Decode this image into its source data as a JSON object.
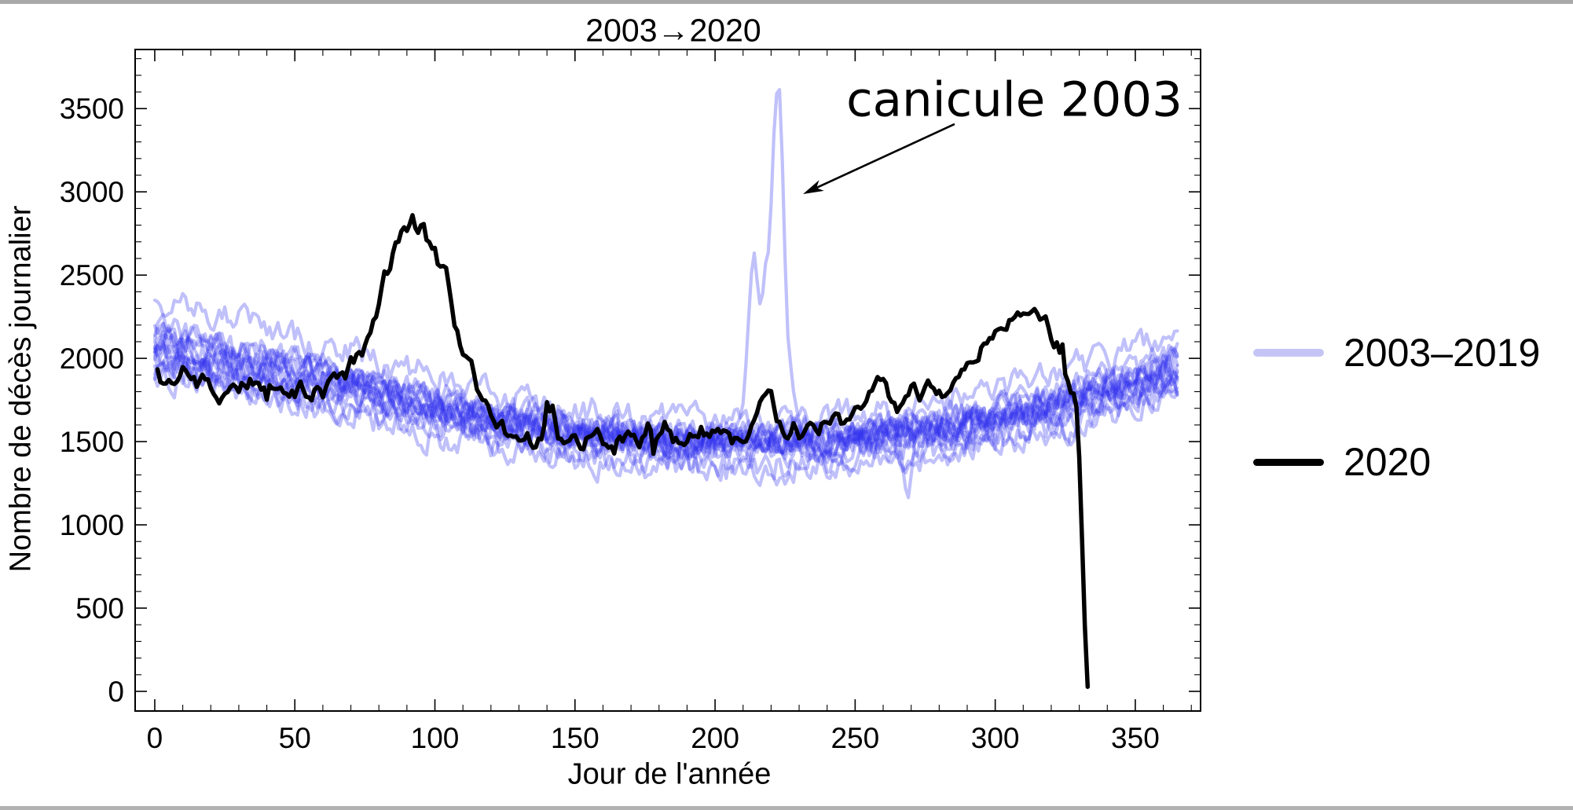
{
  "window": {
    "background": "#ffffff",
    "top_edge_color": "#a9a9a9",
    "bottom_edge_color": "#b2b2b2"
  },
  "chart_data": {
    "type": "line",
    "title": "2003→2020",
    "xlabel": "Jour de l'année",
    "ylabel": "Nombre de décès journalier",
    "xlim": [
      -7,
      373.3
    ],
    "ylim": [
      -118,
      3855
    ],
    "x_ticks": [
      0,
      50,
      100,
      150,
      200,
      250,
      300,
      350
    ],
    "x_minor_step": 10,
    "y_ticks": [
      0,
      500,
      1000,
      1500,
      2000,
      2500,
      3000,
      3500
    ],
    "y_minor_step": 100,
    "grid": false,
    "frame": true,
    "legend": {
      "position": "right-outside",
      "entries": [
        {
          "label": "2003–2019",
          "color": "#c5c5f5"
        },
        {
          "label": "2020",
          "color": "#000000"
        }
      ]
    },
    "annotation": {
      "text": "canicule 2003",
      "arrow_from": [
        285.5,
        3407
      ],
      "arrow_to": [
        231.4,
        2987
      ]
    },
    "series": [
      {
        "name": "2003–2019",
        "style": {
          "color": "#3030ee",
          "opacity": 0.3,
          "width": 4.2
        },
        "n_lines": 17,
        "seasonal_baseline": [
          [
            0,
            1950
          ],
          [
            15,
            1905
          ],
          [
            30,
            1860
          ],
          [
            45,
            1815
          ],
          [
            60,
            1770
          ],
          [
            80,
            1700
          ],
          [
            100,
            1630
          ],
          [
            120,
            1560
          ],
          [
            140,
            1510
          ],
          [
            160,
            1470
          ],
          [
            180,
            1445
          ],
          [
            200,
            1435
          ],
          [
            220,
            1440
          ],
          [
            240,
            1455
          ],
          [
            260,
            1475
          ],
          [
            280,
            1515
          ],
          [
            300,
            1565
          ],
          [
            320,
            1630
          ],
          [
            335,
            1690
          ],
          [
            350,
            1760
          ],
          [
            358,
            1800
          ],
          [
            365,
            1850
          ]
        ],
        "canicule_2003": [
          [
            205,
            1520
          ],
          [
            207,
            1560
          ],
          [
            209,
            1640
          ],
          [
            210,
            1720
          ],
          [
            211,
            1950
          ],
          [
            212,
            2250
          ],
          [
            213,
            2520
          ],
          [
            214,
            2640
          ],
          [
            215,
            2480
          ],
          [
            216,
            2330
          ],
          [
            217,
            2380
          ],
          [
            218,
            2560
          ],
          [
            219,
            2630
          ],
          [
            220,
            2920
          ],
          [
            221,
            3340
          ],
          [
            222,
            3590
          ],
          [
            223,
            3620
          ],
          [
            224,
            3180
          ],
          [
            225,
            2580
          ],
          [
            226,
            2130
          ],
          [
            227,
            1950
          ],
          [
            228,
            1800
          ],
          [
            229,
            1700
          ],
          [
            230,
            1620
          ],
          [
            231,
            1560
          ],
          [
            232,
            1520
          ]
        ],
        "outlier_dip": [
          [
            266,
            1480
          ],
          [
            267,
            1330
          ],
          [
            268,
            1200
          ],
          [
            269,
            1165
          ],
          [
            270,
            1310
          ],
          [
            271,
            1440
          ]
        ]
      },
      {
        "name": "2020",
        "style": {
          "color": "#000000",
          "opacity": 1,
          "width": 5.5
        },
        "keypoints": [
          [
            1,
            1930
          ],
          [
            3,
            1820
          ],
          [
            5,
            1850
          ],
          [
            8,
            1880
          ],
          [
            10,
            1950
          ],
          [
            12,
            1870
          ],
          [
            15,
            1820
          ],
          [
            18,
            1880
          ],
          [
            20,
            1850
          ],
          [
            23,
            1780
          ],
          [
            25,
            1840
          ],
          [
            28,
            1860
          ],
          [
            30,
            1800
          ],
          [
            33,
            1850
          ],
          [
            35,
            1870
          ],
          [
            38,
            1820
          ],
          [
            40,
            1780
          ],
          [
            42,
            1840
          ],
          [
            45,
            1800
          ],
          [
            48,
            1750
          ],
          [
            50,
            1770
          ],
          [
            53,
            1820
          ],
          [
            55,
            1750
          ],
          [
            58,
            1800
          ],
          [
            60,
            1780
          ],
          [
            63,
            1850
          ],
          [
            65,
            1900
          ],
          [
            68,
            1870
          ],
          [
            70,
            1950
          ],
          [
            72,
            2000
          ],
          [
            74,
            1980
          ],
          [
            76,
            2100
          ],
          [
            78,
            2200
          ],
          [
            80,
            2350
          ],
          [
            82,
            2500
          ],
          [
            84,
            2550
          ],
          [
            86,
            2700
          ],
          [
            88,
            2760
          ],
          [
            90,
            2800
          ],
          [
            92,
            2820
          ],
          [
            94,
            2750
          ],
          [
            96,
            2780
          ],
          [
            98,
            2700
          ],
          [
            100,
            2650
          ],
          [
            102,
            2550
          ],
          [
            104,
            2500
          ],
          [
            106,
            2300
          ],
          [
            108,
            2150
          ],
          [
            110,
            2000
          ],
          [
            112,
            1950
          ],
          [
            114,
            1900
          ],
          [
            116,
            1800
          ],
          [
            118,
            1720
          ],
          [
            120,
            1650
          ],
          [
            123,
            1600
          ],
          [
            126,
            1550
          ],
          [
            129,
            1520
          ],
          [
            132,
            1560
          ],
          [
            135,
            1500
          ],
          [
            138,
            1560
          ],
          [
            140,
            1740
          ],
          [
            142,
            1700
          ],
          [
            144,
            1550
          ],
          [
            146,
            1520
          ],
          [
            149,
            1560
          ],
          [
            152,
            1500
          ],
          [
            155,
            1530
          ],
          [
            158,
            1560
          ],
          [
            161,
            1500
          ],
          [
            164,
            1470
          ],
          [
            167,
            1520
          ],
          [
            170,
            1550
          ],
          [
            173,
            1500
          ],
          [
            176,
            1610
          ],
          [
            178,
            1450
          ],
          [
            180,
            1560
          ],
          [
            182,
            1650
          ],
          [
            184,
            1550
          ],
          [
            186,
            1500
          ],
          [
            188,
            1530
          ],
          [
            190,
            1480
          ],
          [
            192,
            1520
          ],
          [
            195,
            1560
          ],
          [
            198,
            1500
          ],
          [
            200,
            1530
          ],
          [
            203,
            1560
          ],
          [
            206,
            1520
          ],
          [
            209,
            1500
          ],
          [
            212,
            1550
          ],
          [
            214,
            1600
          ],
          [
            216,
            1700
          ],
          [
            218,
            1800
          ],
          [
            220,
            1780
          ],
          [
            222,
            1650
          ],
          [
            224,
            1600
          ],
          [
            226,
            1560
          ],
          [
            228,
            1600
          ],
          [
            230,
            1550
          ],
          [
            233,
            1600
          ],
          [
            236,
            1560
          ],
          [
            239,
            1620
          ],
          [
            242,
            1650
          ],
          [
            245,
            1600
          ],
          [
            248,
            1650
          ],
          [
            251,
            1700
          ],
          [
            254,
            1750
          ],
          [
            257,
            1820
          ],
          [
            259,
            1870
          ],
          [
            261,
            1800
          ],
          [
            263,
            1740
          ],
          [
            265,
            1700
          ],
          [
            267,
            1750
          ],
          [
            269,
            1800
          ],
          [
            271,
            1830
          ],
          [
            273,
            1780
          ],
          [
            275,
            1820
          ],
          [
            277,
            1860
          ],
          [
            279,
            1800
          ],
          [
            281,
            1750
          ],
          [
            283,
            1800
          ],
          [
            285,
            1850
          ],
          [
            287,
            1900
          ],
          [
            289,
            1950
          ],
          [
            291,
            2000
          ],
          [
            293,
            1980
          ],
          [
            295,
            2050
          ],
          [
            297,
            2100
          ],
          [
            299,
            2150
          ],
          [
            301,
            2200
          ],
          [
            303,
            2180
          ],
          [
            305,
            2250
          ],
          [
            307,
            2280
          ],
          [
            309,
            2260
          ],
          [
            311,
            2300
          ],
          [
            313,
            2310
          ],
          [
            315,
            2280
          ],
          [
            317,
            2250
          ],
          [
            319,
            2200
          ],
          [
            321,
            2100
          ],
          [
            322,
            2150
          ],
          [
            323,
            2050
          ],
          [
            324,
            2100
          ],
          [
            325,
            1950
          ],
          [
            326,
            1900
          ],
          [
            327,
            1850
          ],
          [
            328,
            1800
          ],
          [
            329,
            1700
          ],
          [
            330,
            1400
          ],
          [
            331,
            900
          ],
          [
            332,
            400
          ],
          [
            333,
            30
          ]
        ]
      }
    ]
  }
}
